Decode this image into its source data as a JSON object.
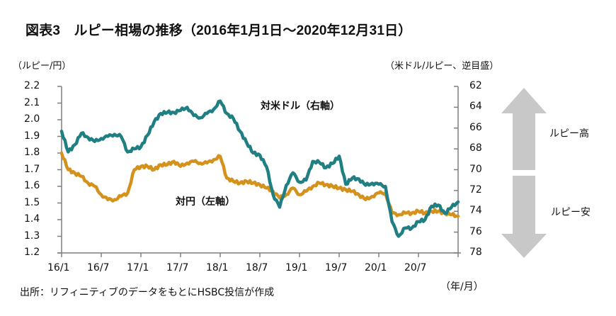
{
  "title": "図表3　ルピー相場の推移（2016年1月1日～2020年12月31日）",
  "left_axis_unit": "（ルピー/円）",
  "right_axis_unit": "（米ドル/ルピー、逆目盛）",
  "x_unit": "（年/月）",
  "source": "出所：リフィニティブのデータをもとにHSBC投信が作成",
  "arrows": {
    "up_label": "ルピー高",
    "down_label": "ルピー安",
    "color": "#c8c8c8"
  },
  "chart_data": {
    "type": "line",
    "title": "ルピー相場の推移（2016年1月1日～2020年12月31日）",
    "xlabel": "（年/月）",
    "x_ticks": [
      "16/1",
      "16/7",
      "17/1",
      "17/7",
      "18/1",
      "18/7",
      "19/1",
      "19/7",
      "20/1",
      "20/7"
    ],
    "x_range": [
      "2016-01",
      "2021-01"
    ],
    "left_axis": {
      "label": "（ルピー/円）",
      "ylim": [
        1.2,
        2.2
      ],
      "ticks": [
        "2.2",
        "2.1",
        "2.0",
        "1.9",
        "1.8",
        "1.7",
        "1.6",
        "1.5",
        "1.4",
        "1.3",
        "1.2"
      ]
    },
    "right_axis": {
      "label": "（米ドル/ルピー、逆目盛）",
      "ylim": [
        62,
        78
      ],
      "inverted": true,
      "ticks": [
        "62",
        "64",
        "66",
        "68",
        "70",
        "72",
        "74",
        "76",
        "78"
      ]
    },
    "grid": false,
    "x": [
      "2016-01",
      "2016-02",
      "2016-03",
      "2016-04",
      "2016-05",
      "2016-06",
      "2016-07",
      "2016-08",
      "2016-09",
      "2016-10",
      "2016-11",
      "2016-12",
      "2017-01",
      "2017-02",
      "2017-03",
      "2017-04",
      "2017-05",
      "2017-06",
      "2017-07",
      "2017-08",
      "2017-09",
      "2017-10",
      "2017-11",
      "2017-12",
      "2018-01",
      "2018-02",
      "2018-03",
      "2018-04",
      "2018-05",
      "2018-06",
      "2018-07",
      "2018-08",
      "2018-09",
      "2018-10",
      "2018-11",
      "2018-12",
      "2019-01",
      "2019-02",
      "2019-03",
      "2019-04",
      "2019-05",
      "2019-06",
      "2019-07",
      "2019-08",
      "2019-09",
      "2019-10",
      "2019-11",
      "2019-12",
      "2020-01",
      "2020-02",
      "2020-03",
      "2020-04",
      "2020-05",
      "2020-06",
      "2020-07",
      "2020-08",
      "2020-09",
      "2020-10",
      "2020-11",
      "2020-12",
      "2021-01"
    ],
    "series": [
      {
        "name": "対米ドル（右軸）",
        "axis": "right",
        "color": "#1f7f82",
        "values": [
          66.3,
          68.3,
          67.6,
          66.5,
          66.9,
          67.3,
          67.0,
          66.8,
          66.6,
          66.8,
          68.3,
          68.0,
          67.8,
          66.7,
          65.4,
          64.6,
          64.5,
          64.5,
          64.3,
          64.0,
          64.8,
          65.0,
          64.6,
          64.2,
          63.4,
          64.6,
          65.1,
          66.3,
          67.4,
          68.4,
          68.6,
          69.7,
          72.4,
          73.6,
          71.5,
          70.3,
          71.2,
          71.0,
          69.2,
          69.3,
          69.8,
          69.4,
          68.7,
          71.4,
          70.8,
          70.9,
          71.5,
          71.3,
          71.4,
          71.6,
          75.0,
          76.4,
          75.6,
          75.6,
          75.0,
          74.8,
          73.5,
          73.4,
          74.2,
          73.6,
          73.1
        ]
      },
      {
        "name": "対円（左軸）",
        "axis": "left",
        "color": "#d4921c",
        "values": [
          1.8,
          1.7,
          1.68,
          1.66,
          1.62,
          1.6,
          1.55,
          1.52,
          1.52,
          1.54,
          1.56,
          1.7,
          1.72,
          1.72,
          1.7,
          1.73,
          1.73,
          1.75,
          1.72,
          1.74,
          1.75,
          1.74,
          1.74,
          1.76,
          1.78,
          1.65,
          1.63,
          1.62,
          1.63,
          1.62,
          1.61,
          1.59,
          1.57,
          1.53,
          1.55,
          1.59,
          1.55,
          1.57,
          1.6,
          1.62,
          1.61,
          1.6,
          1.59,
          1.58,
          1.57,
          1.55,
          1.52,
          1.54,
          1.56,
          1.56,
          1.44,
          1.43,
          1.44,
          1.44,
          1.45,
          1.44,
          1.45,
          1.45,
          1.44,
          1.43,
          1.42
        ]
      }
    ],
    "annotations": [
      "対米ドル（右軸）",
      "対円（左軸）",
      "ルピー高",
      "ルピー安"
    ]
  }
}
